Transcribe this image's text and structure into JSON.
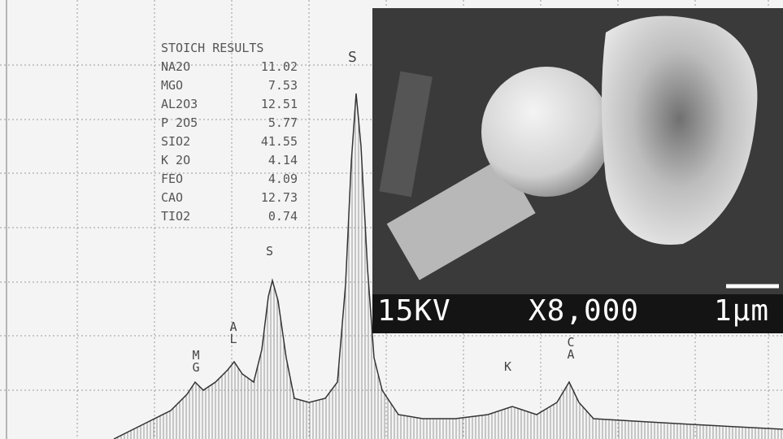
{
  "table": {
    "title": "STOICH RESULTS",
    "rows": [
      [
        "NA2O",
        "11.02"
      ],
      [
        "MGO",
        "7.53"
      ],
      [
        "AL2O3",
        "12.51"
      ],
      [
        "P 2O5",
        "5.77"
      ],
      [
        "SIO2",
        "41.55"
      ],
      [
        "K 2O",
        "4.14"
      ],
      [
        "FEO",
        "4.09"
      ],
      [
        "CAO",
        "12.73"
      ],
      [
        "TIO2",
        "0.74"
      ]
    ]
  },
  "peak_labels": [
    "MG",
    "AL",
    "S",
    "S",
    "K",
    "CA"
  ],
  "image": {
    "voltage": "15KV",
    "magnification": "X8,000",
    "scale": "1μm"
  }
}
